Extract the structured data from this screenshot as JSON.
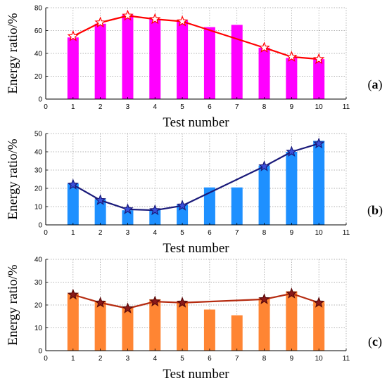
{
  "chart_data": [
    {
      "type": "bar",
      "panel_label": "(a)",
      "panel_letter": "a",
      "xlabel": "Test number",
      "ylabel": "Energy ratio/%",
      "xlim": [
        0,
        11
      ],
      "ylim": [
        0,
        80
      ],
      "xticks": [
        0,
        1,
        2,
        3,
        4,
        5,
        6,
        7,
        8,
        9,
        10,
        11
      ],
      "yticks": [
        0,
        20,
        40,
        60,
        80
      ],
      "grid": true,
      "bar_color": "#ff00ff",
      "line_color": "#ff0000",
      "marker": "star",
      "marker_fill": "#ffffff",
      "marker_stroke": "#ff0000",
      "bars": {
        "x": [
          1,
          2,
          3,
          4,
          5,
          6,
          7,
          8,
          9,
          10
        ],
        "values": [
          54,
          66,
          74,
          70,
          69,
          63,
          65,
          45,
          36,
          35
        ]
      },
      "line": {
        "x": [
          1,
          2,
          3,
          4,
          5,
          8,
          9,
          10
        ],
        "values": [
          55,
          67,
          73,
          70,
          68,
          45,
          37,
          35
        ]
      }
    },
    {
      "type": "bar",
      "panel_label": "(b)",
      "panel_letter": "b",
      "xlabel": "Test number",
      "ylabel": "Energy ratio/%",
      "xlim": [
        0,
        11
      ],
      "ylim": [
        0,
        50
      ],
      "xticks": [
        0,
        1,
        2,
        3,
        4,
        5,
        6,
        7,
        8,
        9,
        10,
        11
      ],
      "yticks": [
        0,
        10,
        20,
        30,
        40,
        50
      ],
      "grid": true,
      "bar_color": "#1e90ff",
      "line_color": "#1a1a7a",
      "marker": "star",
      "marker_fill": "#3b4fd8",
      "marker_stroke": "#1a1a7a",
      "bars": {
        "x": [
          1,
          2,
          3,
          4,
          5,
          6,
          7,
          8,
          9,
          10
        ],
        "values": [
          22.5,
          14,
          8,
          8.5,
          11,
          20.5,
          20.5,
          32.5,
          40,
          46
        ]
      },
      "line": {
        "x": [
          1,
          2,
          3,
          4,
          5,
          8,
          9,
          10
        ],
        "values": [
          22,
          13.5,
          8.5,
          8,
          10.5,
          32,
          40,
          44.5
        ]
      }
    },
    {
      "type": "bar",
      "panel_label": "(c)",
      "panel_letter": "c",
      "xlabel": "Test number",
      "ylabel": "Energy ratio/%",
      "xlim": [
        0,
        11
      ],
      "ylim": [
        0,
        40
      ],
      "xticks": [
        0,
        1,
        2,
        3,
        4,
        5,
        6,
        7,
        8,
        9,
        10,
        11
      ],
      "yticks": [
        0,
        10,
        20,
        30,
        40
      ],
      "grid": true,
      "bar_color": "#ff8533",
      "line_color": "#b52b10",
      "marker": "star",
      "marker_fill": "#8b1a1a",
      "marker_stroke": "#5a0a0a",
      "bars": {
        "x": [
          1,
          2,
          3,
          4,
          5,
          6,
          7,
          8,
          9,
          10
        ],
        "values": [
          25,
          21.5,
          19,
          22.5,
          21.5,
          18,
          15.5,
          23,
          26,
          21.5
        ]
      },
      "line": {
        "x": [
          1,
          2,
          3,
          4,
          5,
          8,
          9,
          10
        ],
        "values": [
          24.5,
          21,
          18.5,
          21.5,
          21,
          22.5,
          25,
          21
        ]
      }
    }
  ]
}
